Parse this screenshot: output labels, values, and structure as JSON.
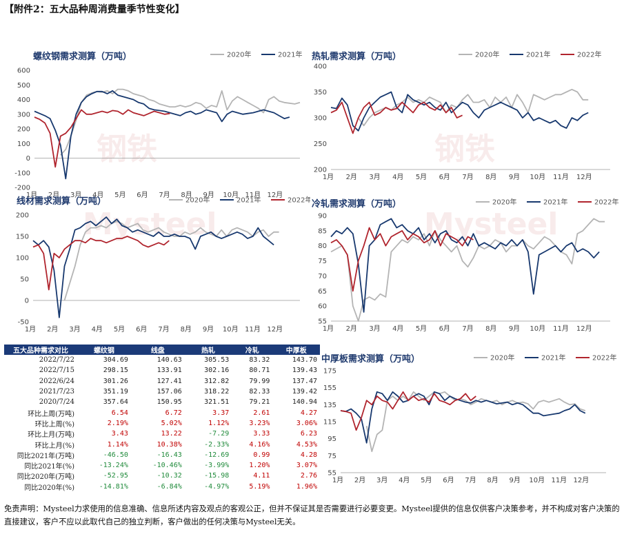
{
  "header": "【附件2：五大品种周消费量季节性变化】",
  "months": [
    "1月",
    "2月",
    "3月",
    "4月",
    "5月",
    "6月",
    "7月",
    "8月",
    "9月",
    "10月",
    "11月",
    "12月"
  ],
  "colors": {
    "y2020": "#b4b4b4",
    "y2021": "#17386e",
    "y2022": "#b0242d"
  },
  "chart_data": [
    {
      "type": "line",
      "id": "rebar",
      "title": "螺纹钢需求测算（万吨）",
      "ylim": [
        -200,
        600
      ],
      "yticks": [
        -200,
        -100,
        0,
        100,
        200,
        300,
        400,
        500,
        600
      ],
      "series": [
        {
          "name": "2020年",
          "key": "y2020",
          "values": [
            null,
            null,
            null,
            null,
            null,
            20,
            60,
            150,
            260,
            380,
            430,
            445,
            455,
            450,
            460,
            440,
            470,
            470,
            460,
            440,
            430,
            420,
            400,
            390,
            370,
            360,
            350,
            350,
            360,
            350,
            360,
            380,
            370,
            340,
            360,
            350,
            460,
            330,
            390,
            420,
            400,
            380,
            360,
            340,
            310,
            400,
            420,
            390,
            380,
            375,
            370,
            380
          ]
        },
        {
          "name": "2021年",
          "key": "y2021",
          "values": [
            320,
            305,
            290,
            270,
            190,
            90,
            -140,
            150,
            300,
            380,
            420,
            440,
            455,
            455,
            440,
            460,
            430,
            420,
            410,
            400,
            380,
            370,
            340,
            330,
            325,
            320,
            310,
            300,
            290,
            310,
            320,
            300,
            310,
            330,
            320,
            310,
            250,
            300,
            320,
            310,
            300,
            305,
            310,
            320,
            330,
            320,
            310,
            290,
            270,
            280
          ]
        },
        {
          "name": "2022年",
          "key": "y2022",
          "values": [
            280,
            265,
            240,
            170,
            -60,
            150,
            170,
            210,
            270,
            330,
            300,
            300,
            310,
            320,
            310,
            325,
            320,
            300,
            330,
            310,
            300,
            290,
            305,
            320,
            310,
            300,
            305
          ]
        }
      ]
    },
    {
      "type": "line",
      "id": "hotroll",
      "title": "热轧需求测算（万吨）",
      "ylim": [
        200,
        400
      ],
      "yticks": [
        200,
        250,
        300,
        350,
        400
      ],
      "series": [
        {
          "name": "2020年",
          "key": "y2020",
          "values": [
            null,
            null,
            null,
            null,
            null,
            300,
            285,
            300,
            310,
            315,
            320,
            315,
            325,
            330,
            340,
            330,
            335,
            330,
            340,
            335,
            330,
            310,
            325,
            320,
            335,
            345,
            330,
            330,
            335,
            320,
            340,
            330,
            340,
            320,
            345,
            330,
            310,
            345,
            340,
            335,
            340,
            345,
            345,
            350,
            355,
            350,
            335,
            335
          ]
        },
        {
          "name": "2021年",
          "key": "y2021",
          "values": [
            320,
            318,
            338,
            325,
            285,
            275,
            300,
            320,
            330,
            340,
            345,
            350,
            320,
            310,
            345,
            335,
            330,
            325,
            330,
            320,
            315,
            330,
            310,
            320,
            330,
            325,
            310,
            300,
            315,
            320,
            325,
            330,
            325,
            320,
            315,
            300,
            310,
            295,
            300,
            295,
            290,
            295,
            285,
            280,
            300,
            295,
            305,
            310
          ]
        },
        {
          "name": "2022年",
          "key": "y2022",
          "values": [
            310,
            315,
            330,
            300,
            270,
            300,
            320,
            330,
            305,
            310,
            320,
            315,
            318,
            330,
            320,
            310,
            325,
            330,
            320,
            315,
            325,
            310,
            320,
            300,
            305
          ]
        }
      ]
    },
    {
      "type": "line",
      "id": "wire",
      "title": "线材需求测算（万吨）",
      "ylim": [
        -50,
        200
      ],
      "yticks": [
        -50,
        0,
        50,
        100,
        150,
        200
      ],
      "series": [
        {
          "name": "2020年",
          "key": "y2020",
          "values": [
            null,
            null,
            null,
            null,
            null,
            null,
            0,
            40,
            80,
            130,
            160,
            170,
            170,
            175,
            170,
            180,
            185,
            180,
            170,
            175,
            180,
            165,
            160,
            165,
            170,
            160,
            155,
            150,
            150,
            160,
            155,
            160,
            170,
            160,
            155,
            150,
            165,
            150,
            165,
            170,
            165,
            160,
            150,
            160,
            165,
            150,
            160,
            160
          ]
        },
        {
          "name": "2021年",
          "key": "y2021",
          "values": [
            140,
            130,
            140,
            125,
            70,
            -40,
            80,
            120,
            165,
            170,
            180,
            185,
            175,
            185,
            195,
            180,
            190,
            175,
            170,
            160,
            165,
            160,
            155,
            150,
            160,
            150,
            150,
            155,
            150,
            150,
            145,
            120,
            150,
            155,
            160,
            150,
            145,
            150,
            155,
            160,
            155,
            145,
            150,
            170,
            150,
            140,
            130
          ]
        },
        {
          "name": "2022年",
          "key": "y2022",
          "values": [
            125,
            130,
            110,
            25,
            110,
            100,
            120,
            130,
            140,
            140,
            135,
            145,
            140,
            140,
            135,
            140,
            145,
            145,
            150,
            145,
            140,
            130,
            125,
            130,
            135,
            130,
            140
          ]
        }
      ]
    },
    {
      "type": "line",
      "id": "coldroll",
      "title": "冷轧需求测算（万吨）",
      "ylim": [
        55,
        90
      ],
      "yticks": [
        55,
        60,
        65,
        70,
        75,
        80,
        85,
        90
      ],
      "series": [
        {
          "name": "2020年",
          "key": "y2020",
          "values": [
            78,
            79,
            80,
            77,
            60,
            55,
            62,
            63,
            62,
            64,
            63,
            78,
            80,
            82,
            81,
            83,
            82,
            84,
            80,
            85,
            82,
            80,
            78,
            80,
            75,
            73,
            76,
            80,
            79,
            80,
            82,
            81,
            78,
            80,
            80,
            82,
            80,
            79,
            81,
            83,
            82,
            80,
            78,
            77,
            74,
            84,
            85,
            87,
            89,
            88,
            88
          ]
        },
        {
          "name": "2021年",
          "key": "y2021",
          "values": [
            83,
            85,
            84,
            86,
            84,
            74,
            58,
            80,
            82,
            87,
            88,
            89,
            86,
            87,
            85,
            84,
            86,
            82,
            84,
            81,
            84,
            85,
            82,
            81,
            83,
            80,
            84,
            80,
            81,
            80,
            79,
            81,
            80,
            82,
            80,
            82,
            78,
            64,
            77,
            78,
            79,
            80,
            78,
            80,
            81,
            78,
            79,
            78,
            76,
            78
          ]
        },
        {
          "name": "2022年",
          "key": "y2022",
          "values": [
            81,
            82,
            80,
            77,
            65,
            75,
            80,
            86,
            82,
            84,
            80,
            83,
            84,
            85,
            82,
            84,
            83,
            81,
            82,
            85,
            80,
            84,
            83,
            82,
            80,
            83,
            82
          ]
        }
      ]
    },
    {
      "type": "line",
      "id": "plate",
      "title": "中厚板需求测算（万吨）",
      "ylim": [
        55,
        175
      ],
      "yticks": [
        55,
        75,
        95,
        115,
        135,
        155,
        175
      ],
      "series": [
        {
          "name": "2020年",
          "key": "y2020",
          "values": [
            null,
            null,
            null,
            null,
            null,
            110,
            80,
            100,
            105,
            140,
            145,
            140,
            145,
            140,
            150,
            145,
            140,
            145,
            150,
            148,
            150,
            145,
            140,
            142,
            140,
            135,
            138,
            142,
            140,
            138,
            140,
            135,
            138,
            140,
            137,
            138,
            136,
            130,
            138,
            140,
            138,
            140,
            142,
            138,
            135,
            136,
            130,
            128
          ]
        },
        {
          "name": "2021年",
          "key": "y2021",
          "values": [
            128,
            127,
            130,
            125,
            118,
            90,
            130,
            150,
            148,
            140,
            150,
            145,
            138,
            140,
            145,
            148,
            145,
            135,
            150,
            148,
            140,
            145,
            142,
            140,
            138,
            137,
            140,
            138,
            140,
            138,
            136,
            137,
            138,
            135,
            137,
            135,
            130,
            125,
            125,
            122,
            123,
            124,
            125,
            128,
            130,
            135,
            128,
            125
          ]
        },
        {
          "name": "2022年",
          "key": "y2022",
          "values": [
            128,
            127,
            125,
            105,
            120,
            140,
            135,
            145,
            140,
            138,
            130,
            140,
            150,
            140,
            145,
            140,
            142,
            138,
            148,
            140,
            138,
            135,
            140,
            142,
            148,
            140,
            145
          ]
        }
      ]
    }
  ],
  "table": {
    "headers": [
      "五大品种需求对比",
      "螺纹钢",
      "线盘",
      "热轧",
      "冷轧",
      "中厚板"
    ],
    "rows": [
      {
        "label": "2022/7/22",
        "cells": [
          "304.69",
          "140.63",
          "305.53",
          "83.32",
          "143.70"
        ],
        "signs": [
          "d",
          "d",
          "d",
          "d",
          "d"
        ]
      },
      {
        "label": "2022/7/15",
        "cells": [
          "298.15",
          "133.91",
          "302.16",
          "80.71",
          "139.43"
        ],
        "signs": [
          "d",
          "d",
          "d",
          "d",
          "d"
        ]
      },
      {
        "label": "2022/6/24",
        "cells": [
          "301.26",
          "127.41",
          "312.82",
          "79.99",
          "137.47"
        ],
        "signs": [
          "d",
          "d",
          "d",
          "d",
          "d"
        ]
      },
      {
        "label": "2021/7/23",
        "cells": [
          "351.19",
          "157.06",
          "318.22",
          "82.33",
          "139.42"
        ],
        "signs": [
          "d",
          "d",
          "d",
          "d",
          "d"
        ]
      },
      {
        "label": "2020/7/24",
        "cells": [
          "357.64",
          "150.95",
          "321.51",
          "79.21",
          "140.94"
        ],
        "signs": [
          "d",
          "d",
          "d",
          "d",
          "d"
        ]
      },
      {
        "label": "环比上周(万吨)",
        "cells": [
          "6.54",
          "6.72",
          "3.37",
          "2.61",
          "4.27"
        ],
        "signs": [
          "pos",
          "pos",
          "pos",
          "pos",
          "pos"
        ]
      },
      {
        "label": "环比上周(%)",
        "cells": [
          "2.19%",
          "5.02%",
          "1.12%",
          "3.23%",
          "3.06%"
        ],
        "signs": [
          "pos",
          "pos",
          "pos",
          "pos",
          "pos"
        ]
      },
      {
        "label": "环比上月(万吨)",
        "cells": [
          "3.43",
          "13.22",
          "-7.29",
          "3.33",
          "6.23"
        ],
        "signs": [
          "pos",
          "pos",
          "neg",
          "pos",
          "pos"
        ]
      },
      {
        "label": "环比上月(%)",
        "cells": [
          "1.14%",
          "10.38%",
          "-2.33%",
          "4.16%",
          "4.53%"
        ],
        "signs": [
          "pos",
          "pos",
          "neg",
          "pos",
          "pos"
        ]
      },
      {
        "label": "同比2021年(万吨)",
        "cells": [
          "-46.50",
          "-16.43",
          "-12.69",
          "0.99",
          "4.28"
        ],
        "signs": [
          "neg",
          "neg",
          "neg",
          "pos",
          "pos"
        ]
      },
      {
        "label": "同比2021年(%)",
        "cells": [
          "-13.24%",
          "-10.46%",
          "-3.99%",
          "1.20%",
          "3.07%"
        ],
        "signs": [
          "neg",
          "neg",
          "neg",
          "pos",
          "pos"
        ]
      },
      {
        "label": "同比2020年(万吨)",
        "cells": [
          "-52.95",
          "-10.32",
          "-15.98",
          "4.11",
          "2.76"
        ],
        "signs": [
          "neg",
          "neg",
          "neg",
          "pos",
          "pos"
        ]
      },
      {
        "label": "同比2020年(%)",
        "cells": [
          "-14.81%",
          "-6.84%",
          "-4.97%",
          "5.19%",
          "1.96%"
        ],
        "signs": [
          "neg",
          "neg",
          "neg",
          "pos",
          "pos"
        ]
      }
    ]
  },
  "disclaimer": "免责声明：Mysteel力求使用的信息准确、信息所述内容及观点的客观公正，但并不保证其是否需要进行必要变更。Mysteel提供的信息仅供客户决策参考，并不构成对客户决策的直接建议，客户不应以此取代自己的独立判断，客户做出的任何决策与Mysteel无关。"
}
